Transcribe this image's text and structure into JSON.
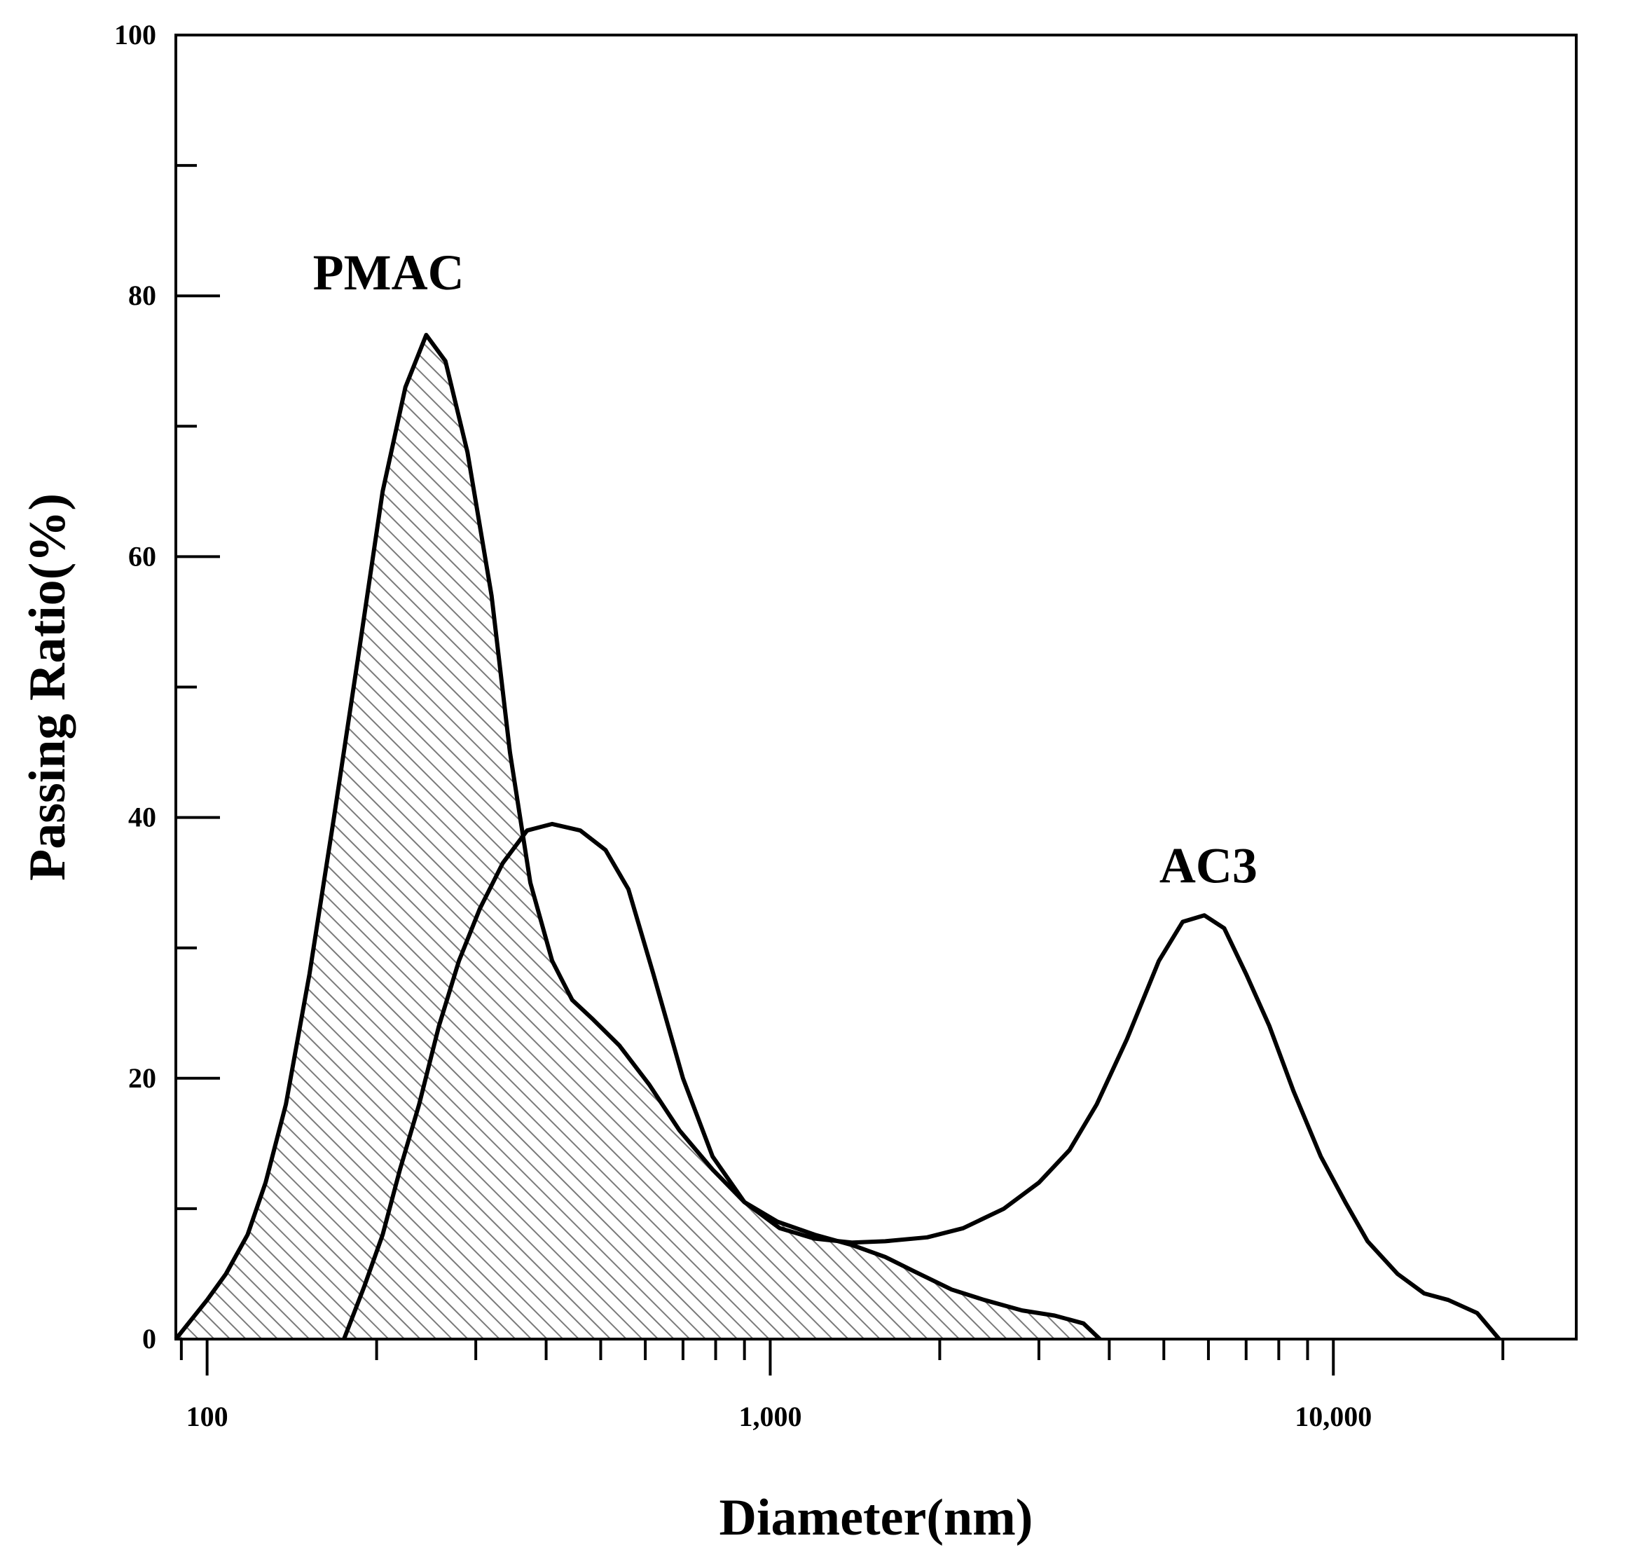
{
  "chart_data": {
    "type": "area",
    "title": "",
    "xlabel": "Diameter(nm)",
    "ylabel": "Passing Ratio(%)",
    "xscale": "log",
    "xlim": [
      88,
      27000
    ],
    "ylim": [
      0,
      100
    ],
    "grid": false,
    "legend": "none",
    "x_tick_labels": [
      {
        "value": 100,
        "label": "100"
      },
      {
        "value": 1000,
        "label": "1,000"
      },
      {
        "value": 10000,
        "label": "10,000"
      }
    ],
    "y_tick_labels": [
      {
        "value": 0,
        "label": "0"
      },
      {
        "value": 20,
        "label": "20"
      },
      {
        "value": 40,
        "label": "40"
      },
      {
        "value": 60,
        "label": "60"
      },
      {
        "value": 80,
        "label": "80"
      },
      {
        "value": 100,
        "label": "100"
      }
    ],
    "series": [
      {
        "name": "PMAC",
        "fill": "hatched",
        "label_anchor": {
          "x": 210,
          "y": 80.5
        },
        "x": [
          88,
          100,
          108,
          118,
          127,
          138,
          152,
          168,
          185,
          205,
          225,
          245,
          265,
          290,
          320,
          345,
          375,
          410,
          445,
          485,
          540,
          610,
          690,
          790,
          900,
          1030,
          1200,
          1400,
          1600,
          1800,
          2100,
          2400,
          2800,
          3200,
          3600,
          3850
        ],
        "values": [
          0,
          3,
          5,
          8,
          12,
          18,
          28,
          40,
          52,
          65,
          73,
          77,
          75,
          68,
          57,
          45,
          35,
          29,
          26,
          24.5,
          22.5,
          19.5,
          16,
          13,
          10.5,
          9,
          8,
          7.2,
          6.3,
          5.2,
          3.8,
          3,
          2.2,
          1.8,
          1.2,
          0
        ]
      },
      {
        "name": "AC3",
        "fill": "none",
        "label_anchor": {
          "x": 6000,
          "y": 35
        },
        "x": [
          175,
          190,
          205,
          220,
          238,
          258,
          280,
          305,
          335,
          370,
          410,
          460,
          510,
          560,
          620,
          700,
          790,
          900,
          1040,
          1200,
          1400,
          1600,
          1900,
          2200,
          2600,
          3000,
          3400,
          3800,
          4300,
          4900,
          5400,
          5900,
          6400,
          7000,
          7700,
          8500,
          9500,
          10500,
          11500,
          13000,
          14500,
          16000,
          18000,
          19700
        ],
        "values": [
          0,
          4,
          8,
          13,
          18,
          24,
          29,
          33,
          36.5,
          39,
          39.5,
          39,
          37.5,
          34.5,
          28,
          20,
          14,
          10.5,
          8.5,
          7.7,
          7.4,
          7.5,
          7.8,
          8.5,
          10,
          12,
          14.5,
          18,
          23,
          29,
          32,
          32.5,
          31.5,
          28,
          24,
          19,
          14,
          10.5,
          7.5,
          5,
          3.5,
          3,
          2,
          0
        ]
      }
    ]
  }
}
